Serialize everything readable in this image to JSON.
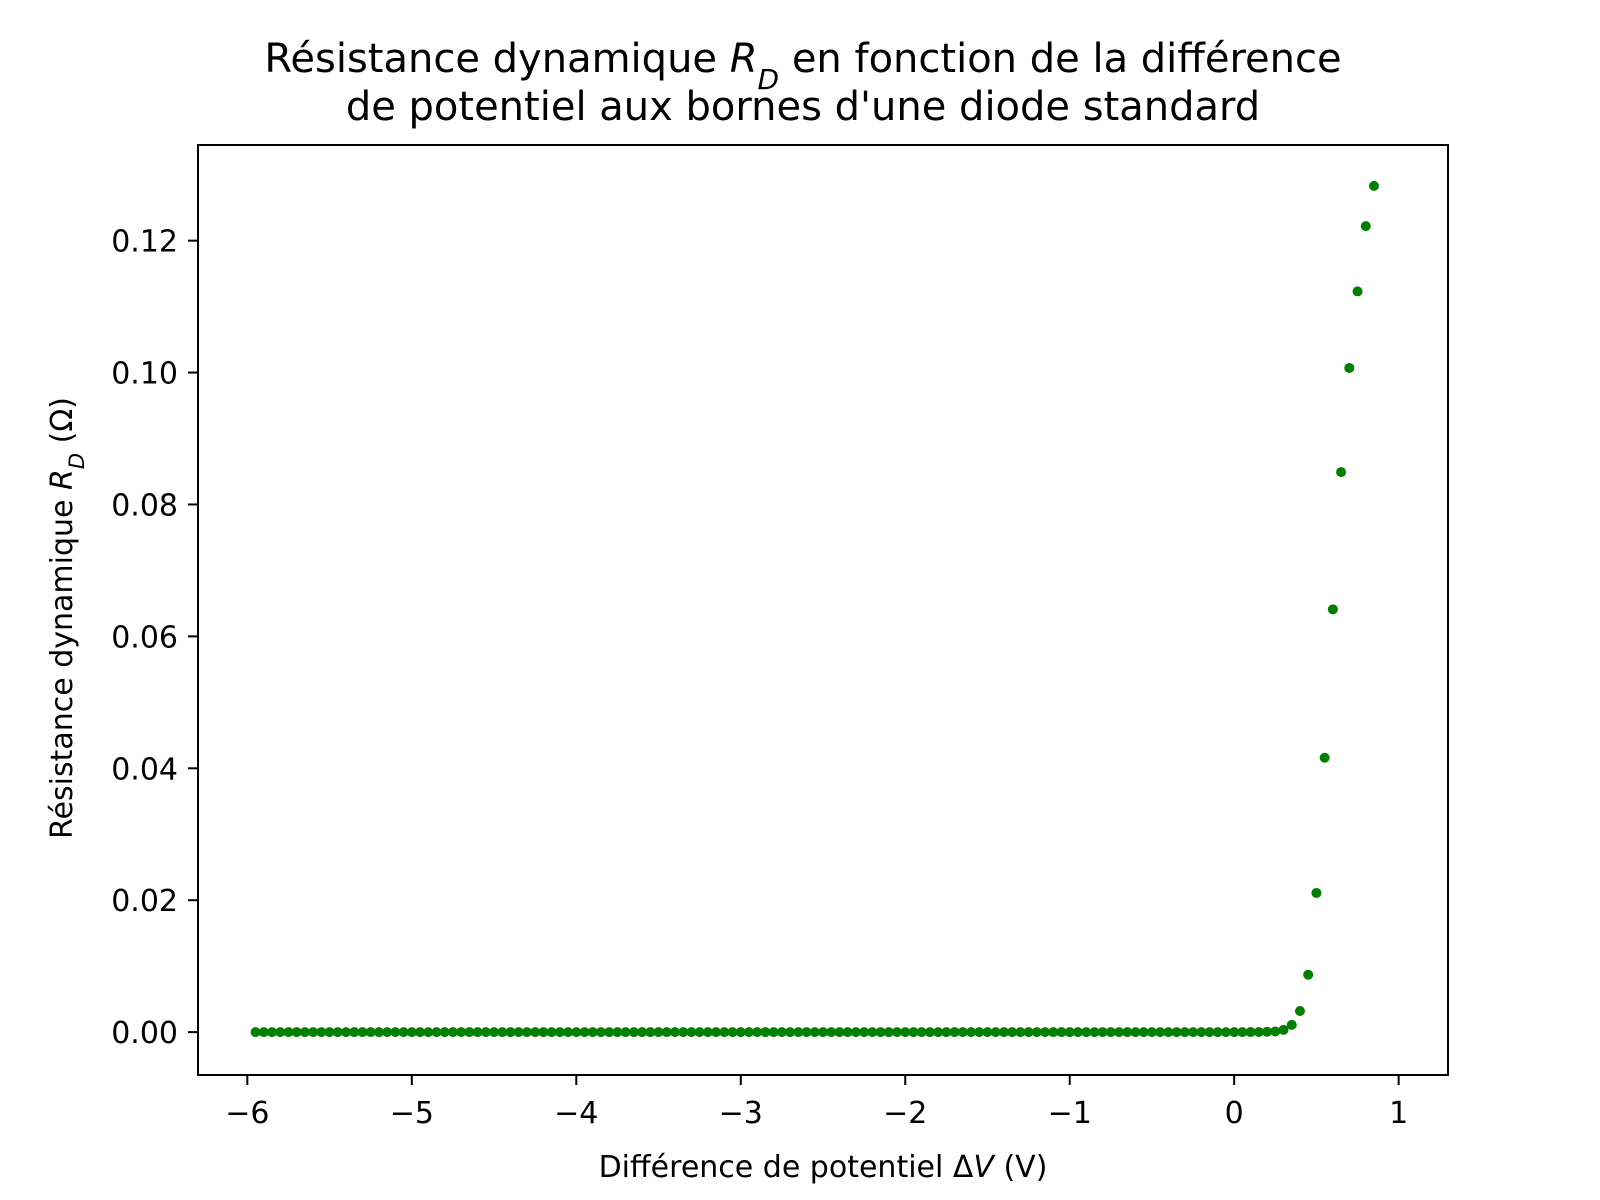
{
  "chart_data": {
    "type": "scatter",
    "title": [
      "Résistance dynamique R_D en fonction de la différence",
      "de potentiel aux bornes d'une diode standard"
    ],
    "xlabel": "Différence de potentiel ΔV (V)",
    "ylabel": "Résistance dynamique R_D (Ω)",
    "xlim": [
      -6.3,
      1.3
    ],
    "ylim": [
      -0.0065,
      0.1345
    ],
    "xticks": [
      -6,
      -5,
      -4,
      -3,
      -2,
      -1,
      0,
      1
    ],
    "xtick_labels": [
      "−6",
      "−5",
      "−4",
      "−3",
      "−2",
      "−1",
      "0",
      "1"
    ],
    "yticks": [
      0.0,
      0.02,
      0.04,
      0.06,
      0.08,
      0.1,
      0.12
    ],
    "ytick_labels": [
      "0.00",
      "0.02",
      "0.04",
      "0.06",
      "0.08",
      "0.10",
      "0.12"
    ],
    "grid": false,
    "marker_color": "#008000",
    "series": [
      {
        "x_start": -5.95,
        "x_step": 0.05,
        "y": [
          0,
          0,
          0,
          0,
          0,
          0,
          0,
          0,
          0,
          0,
          0,
          0,
          0,
          0,
          0,
          0,
          0,
          0,
          0,
          0,
          0,
          0,
          0,
          0,
          0,
          0,
          0,
          0,
          0,
          0,
          0,
          0,
          0,
          0,
          0,
          0,
          0,
          0,
          0,
          0,
          0,
          0,
          0,
          0,
          0,
          0,
          0,
          0,
          0,
          0,
          0,
          0,
          0,
          0,
          0,
          0,
          0,
          0,
          0,
          0,
          0,
          0,
          0,
          0,
          0,
          0,
          0,
          0,
          0,
          0,
          0,
          0,
          0,
          0,
          0,
          0,
          0,
          0,
          0,
          0,
          0,
          0,
          0,
          0,
          0,
          0,
          0,
          0,
          0,
          0,
          0,
          0,
          0,
          0,
          0,
          0,
          0,
          0,
          0,
          0,
          0,
          0,
          0,
          0,
          0,
          0,
          0,
          0,
          0,
          0,
          0,
          0,
          0,
          0,
          0,
          0,
          0,
          0,
          0,
          0,
          0,
          1e-05,
          2e-05,
          5e-05,
          0.0001,
          0.00035,
          0.0011,
          0.0032,
          0.0087,
          0.0211,
          0.0416,
          0.0641,
          0.0849,
          0.1007,
          0.1123,
          0.1222,
          0.1283
        ]
      }
    ]
  }
}
